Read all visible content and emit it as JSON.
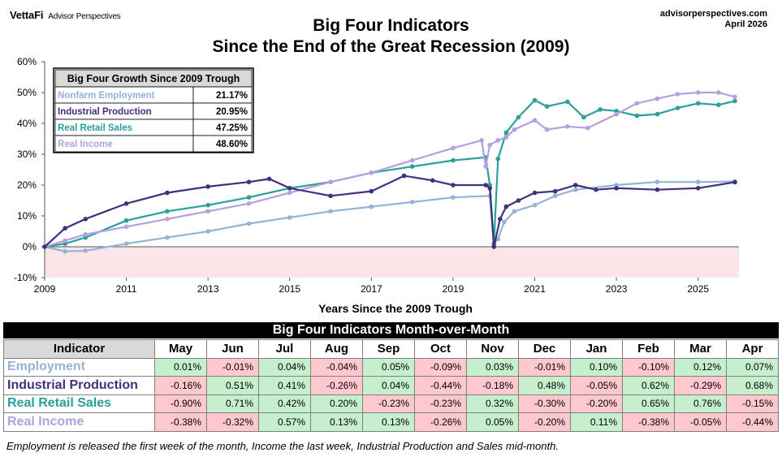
{
  "header": {
    "brand": "VettaFi",
    "brand_sub": "Advisor Perspectives",
    "title_line1": "Big Four Indicators",
    "title_line2": "Since the End of the Great Recession (2009)",
    "site": "advisorperspectives.com",
    "date": "April 2026"
  },
  "colors": {
    "employment": "#95b3d7",
    "industrial": "#403080",
    "retail": "#2aa198",
    "income": "#b4a0e0",
    "negative_zone": "#fbe5e8"
  },
  "chart_data": {
    "type": "line",
    "xlabel": "Years Since the 2009 Trough",
    "ylabel": "",
    "xlim": [
      2009.0,
      2026.0
    ],
    "ylim": [
      -10,
      60
    ],
    "x_ticks": [
      "2009",
      "2011",
      "2013",
      "2015",
      "2017",
      "2019",
      "2021",
      "2023",
      "2025"
    ],
    "y_ticks": [
      "-10%",
      "0%",
      "10%",
      "20%",
      "30%",
      "40%",
      "50%",
      "60%"
    ],
    "grid": false,
    "legend_table": {
      "header": "Big Four Growth Since 2009 Trough",
      "rows": [
        {
          "name": "Nonfarm Employment",
          "value": "21.17%"
        },
        {
          "name": "Industrial Production",
          "value": "20.95%"
        },
        {
          "name": "Real Retail Sales",
          "value": "47.25%"
        },
        {
          "name": "Real Income",
          "value": "48.60%"
        }
      ]
    },
    "series": [
      {
        "name": "Nonfarm Employment",
        "x": [
          2009.0,
          2009.5,
          2010.0,
          2011.0,
          2012.0,
          2013.0,
          2014.0,
          2015.0,
          2016.0,
          2017.0,
          2018.0,
          2019.0,
          2019.9,
          2020.0,
          2020.1,
          2020.25,
          2020.5,
          2021.0,
          2021.5,
          2022.0,
          2023.0,
          2024.0,
          2025.0,
          2025.9
        ],
        "y": [
          0,
          -1.5,
          -1.3,
          1.0,
          3.0,
          5.0,
          7.5,
          9.5,
          11.5,
          13.0,
          14.5,
          16.0,
          16.5,
          1.0,
          2.5,
          8.0,
          11.5,
          13.5,
          16.5,
          18.5,
          20.0,
          21.0,
          21.0,
          21.17
        ]
      },
      {
        "name": "Industrial Production",
        "x": [
          2009.0,
          2009.5,
          2010.0,
          2011.0,
          2012.0,
          2013.0,
          2014.0,
          2014.5,
          2015.0,
          2016.0,
          2017.0,
          2017.8,
          2018.5,
          2019.0,
          2019.8,
          2019.9,
          2020.0,
          2020.15,
          2020.3,
          2020.6,
          2021.0,
          2021.5,
          2022.0,
          2022.5,
          2023.0,
          2024.0,
          2025.0,
          2025.9
        ],
        "y": [
          0,
          6.0,
          9.0,
          14.0,
          17.5,
          19.5,
          21.0,
          22.0,
          19.0,
          16.5,
          18.0,
          23.0,
          21.5,
          20.0,
          20.0,
          19.0,
          0,
          9.0,
          13.0,
          15.0,
          17.5,
          18.0,
          20.0,
          18.5,
          19.0,
          18.5,
          19.0,
          20.95
        ]
      },
      {
        "name": "Real Retail Sales",
        "x": [
          2009.0,
          2009.5,
          2010.0,
          2011.0,
          2012.0,
          2013.0,
          2014.0,
          2015.0,
          2016.0,
          2017.0,
          2018.0,
          2019.0,
          2019.8,
          2019.9,
          2020.0,
          2020.1,
          2020.3,
          2020.6,
          2021.0,
          2021.3,
          2021.8,
          2022.2,
          2022.6,
          2023.0,
          2023.5,
          2024.0,
          2024.5,
          2025.0,
          2025.5,
          2025.9
        ],
        "y": [
          0,
          1.0,
          3.0,
          8.5,
          11.5,
          13.5,
          16.0,
          19.0,
          21.0,
          24.0,
          26.0,
          28.0,
          29.0,
          20.0,
          1.0,
          28.5,
          37.0,
          42.0,
          47.5,
          45.5,
          47.0,
          42.0,
          44.5,
          44.0,
          42.5,
          43.0,
          45.0,
          46.5,
          46.0,
          47.25
        ]
      },
      {
        "name": "Real Income",
        "x": [
          2009.0,
          2009.5,
          2010.0,
          2011.0,
          2012.0,
          2013.0,
          2014.0,
          2015.0,
          2016.0,
          2017.0,
          2018.0,
          2019.0,
          2019.7,
          2019.8,
          2019.9,
          2020.1,
          2020.3,
          2020.5,
          2021.0,
          2021.3,
          2021.8,
          2022.3,
          2023.0,
          2023.5,
          2024.0,
          2024.5,
          2025.0,
          2025.5,
          2025.9
        ],
        "y": [
          0,
          2.0,
          4.0,
          6.5,
          9.0,
          11.5,
          14.0,
          17.5,
          21.0,
          24.0,
          28.0,
          32.0,
          34.5,
          26.0,
          33.0,
          34.5,
          35.5,
          38.0,
          41.0,
          38.0,
          39.0,
          38.5,
          43.0,
          46.5,
          48.0,
          49.5,
          50.0,
          50.0,
          48.6
        ]
      }
    ]
  },
  "mom_table": {
    "title": "Big Four Indicators Month-over-Month",
    "header_indicator": "Indicator",
    "months": [
      "May",
      "Jun",
      "Jul",
      "Aug",
      "Sep",
      "Oct",
      "Nov",
      "Dec",
      "Jan",
      "Feb",
      "Mar",
      "Apr"
    ],
    "rows": [
      {
        "name": "Employment",
        "values": [
          "0.01%",
          "-0.01%",
          "0.04%",
          "-0.04%",
          "0.05%",
          "-0.09%",
          "0.03%",
          "-0.01%",
          "0.10%",
          "-0.10%",
          "0.12%",
          "0.07%"
        ]
      },
      {
        "name": "Industrial Production",
        "values": [
          "-0.16%",
          "0.51%",
          "0.41%",
          "-0.26%",
          "0.04%",
          "-0.44%",
          "-0.18%",
          "0.48%",
          "-0.05%",
          "0.62%",
          "-0.29%",
          "0.68%"
        ]
      },
      {
        "name": "Real Retail Sales",
        "values": [
          "-0.90%",
          "0.71%",
          "0.42%",
          "0.20%",
          "-0.23%",
          "-0.23%",
          "0.32%",
          "-0.30%",
          "-0.20%",
          "0.65%",
          "0.76%",
          "-0.15%"
        ]
      },
      {
        "name": "Real Income",
        "values": [
          "-0.38%",
          "-0.32%",
          "0.57%",
          "0.13%",
          "0.13%",
          "-0.26%",
          "0.05%",
          "-0.20%",
          "0.11%",
          "-0.38%",
          "-0.05%",
          "-0.44%"
        ]
      }
    ]
  },
  "footnote": "Employment is released the first week of the month, Income the last week, Industrial Production and Sales mid-month."
}
